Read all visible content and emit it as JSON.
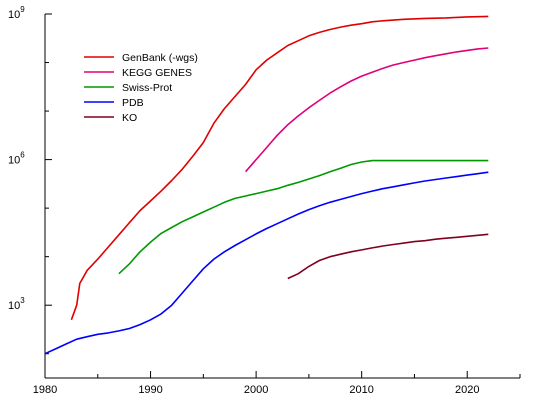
{
  "chart_data": {
    "type": "line",
    "title": "",
    "xlabel": "",
    "ylabel": "",
    "y_scale": "log",
    "xlim": [
      1980,
      2025
    ],
    "ylim_log10": [
      1.5,
      9
    ],
    "x_ticks": [
      1980,
      1990,
      2000,
      2010,
      2020
    ],
    "y_tick_labels": [
      {
        "label": "10",
        "exp": "3",
        "log10": 3
      },
      {
        "label": "10",
        "exp": "6",
        "log10": 6
      },
      {
        "label": "10",
        "exp": "9",
        "log10": 9
      }
    ],
    "grid": false,
    "legend_position": "top-left",
    "series": [
      {
        "name": "GenBank (-wgs)",
        "color": "#e00000",
        "points": [
          [
            1982.5,
            2.7
          ],
          [
            1983.0,
            3.0
          ],
          [
            1983.3,
            3.45
          ],
          [
            1984.0,
            3.72
          ],
          [
            1985.0,
            3.95
          ],
          [
            1986.0,
            4.2
          ],
          [
            1987.0,
            4.45
          ],
          [
            1988.0,
            4.7
          ],
          [
            1989.0,
            4.95
          ],
          [
            1990.0,
            5.15
          ],
          [
            1991.0,
            5.35
          ],
          [
            1992.0,
            5.57
          ],
          [
            1993.0,
            5.8
          ],
          [
            1994.0,
            6.07
          ],
          [
            1995.0,
            6.35
          ],
          [
            1996.0,
            6.75
          ],
          [
            1997.0,
            7.05
          ],
          [
            1998.0,
            7.3
          ],
          [
            1999.0,
            7.55
          ],
          [
            2000.0,
            7.85
          ],
          [
            2001.0,
            8.05
          ],
          [
            2002.0,
            8.2
          ],
          [
            2003.0,
            8.35
          ],
          [
            2004.0,
            8.45
          ],
          [
            2005.0,
            8.55
          ],
          [
            2006.0,
            8.62
          ],
          [
            2007.0,
            8.68
          ],
          [
            2008.0,
            8.73
          ],
          [
            2009.0,
            8.77
          ],
          [
            2010.0,
            8.8
          ],
          [
            2011.0,
            8.84
          ],
          [
            2012.0,
            8.86
          ],
          [
            2014.0,
            8.89
          ],
          [
            2016.0,
            8.91
          ],
          [
            2018.0,
            8.92
          ],
          [
            2020.0,
            8.94
          ],
          [
            2022.0,
            8.95
          ]
        ]
      },
      {
        "name": "KEGG GENES",
        "color": "#e0007a",
        "points": [
          [
            1999.0,
            5.75
          ],
          [
            2000.0,
            6.0
          ],
          [
            2001.0,
            6.25
          ],
          [
            2002.0,
            6.5
          ],
          [
            2003.0,
            6.72
          ],
          [
            2004.0,
            6.9
          ],
          [
            2005.0,
            7.07
          ],
          [
            2006.0,
            7.22
          ],
          [
            2007.0,
            7.37
          ],
          [
            2008.0,
            7.5
          ],
          [
            2009.0,
            7.62
          ],
          [
            2010.0,
            7.72
          ],
          [
            2011.0,
            7.8
          ],
          [
            2012.0,
            7.88
          ],
          [
            2013.0,
            7.95
          ],
          [
            2014.0,
            8.0
          ],
          [
            2015.0,
            8.05
          ],
          [
            2016.0,
            8.1
          ],
          [
            2017.0,
            8.14
          ],
          [
            2018.0,
            8.18
          ],
          [
            2019.0,
            8.22
          ],
          [
            2020.0,
            8.25
          ],
          [
            2021.0,
            8.28
          ],
          [
            2022.0,
            8.3
          ]
        ]
      },
      {
        "name": "Swiss-Prot",
        "color": "#009900",
        "points": [
          [
            1987.0,
            3.65
          ],
          [
            1988.0,
            3.85
          ],
          [
            1989.0,
            4.1
          ],
          [
            1990.0,
            4.3
          ],
          [
            1991.0,
            4.48
          ],
          [
            1992.0,
            4.6
          ],
          [
            1993.0,
            4.72
          ],
          [
            1994.0,
            4.82
          ],
          [
            1995.0,
            4.92
          ],
          [
            1996.0,
            5.02
          ],
          [
            1997.0,
            5.12
          ],
          [
            1998.0,
            5.2
          ],
          [
            1999.0,
            5.25
          ],
          [
            2000.0,
            5.3
          ],
          [
            2001.0,
            5.35
          ],
          [
            2002.0,
            5.4
          ],
          [
            2003.0,
            5.47
          ],
          [
            2004.0,
            5.53
          ],
          [
            2005.0,
            5.6
          ],
          [
            2006.0,
            5.67
          ],
          [
            2007.0,
            5.75
          ],
          [
            2008.0,
            5.82
          ],
          [
            2009.0,
            5.9
          ],
          [
            2010.0,
            5.95
          ],
          [
            2011.0,
            5.98
          ],
          [
            2012.0,
            5.98
          ],
          [
            2014.0,
            5.98
          ],
          [
            2016.0,
            5.98
          ],
          [
            2018.0,
            5.98
          ],
          [
            2020.0,
            5.98
          ],
          [
            2022.0,
            5.98
          ]
        ]
      },
      {
        "name": "PDB",
        "color": "#0000ff",
        "points": [
          [
            1980.0,
            2.0
          ],
          [
            1981.0,
            2.1
          ],
          [
            1982.0,
            2.2
          ],
          [
            1983.0,
            2.3
          ],
          [
            1984.0,
            2.35
          ],
          [
            1985.0,
            2.4
          ],
          [
            1986.0,
            2.43
          ],
          [
            1987.0,
            2.47
          ],
          [
            1988.0,
            2.52
          ],
          [
            1989.0,
            2.6
          ],
          [
            1990.0,
            2.7
          ],
          [
            1991.0,
            2.82
          ],
          [
            1992.0,
            3.0
          ],
          [
            1993.0,
            3.25
          ],
          [
            1994.0,
            3.5
          ],
          [
            1995.0,
            3.75
          ],
          [
            1996.0,
            3.95
          ],
          [
            1997.0,
            4.1
          ],
          [
            1998.0,
            4.23
          ],
          [
            1999.0,
            4.35
          ],
          [
            2000.0,
            4.47
          ],
          [
            2001.0,
            4.58
          ],
          [
            2002.0,
            4.68
          ],
          [
            2003.0,
            4.78
          ],
          [
            2004.0,
            4.88
          ],
          [
            2005.0,
            4.97
          ],
          [
            2006.0,
            5.05
          ],
          [
            2007.0,
            5.12
          ],
          [
            2008.0,
            5.18
          ],
          [
            2009.0,
            5.24
          ],
          [
            2010.0,
            5.3
          ],
          [
            2011.0,
            5.35
          ],
          [
            2012.0,
            5.4
          ],
          [
            2013.0,
            5.44
          ],
          [
            2014.0,
            5.48
          ],
          [
            2015.0,
            5.52
          ],
          [
            2016.0,
            5.56
          ],
          [
            2017.0,
            5.59
          ],
          [
            2018.0,
            5.62
          ],
          [
            2019.0,
            5.65
          ],
          [
            2020.0,
            5.68
          ],
          [
            2021.0,
            5.71
          ],
          [
            2022.0,
            5.74
          ]
        ]
      },
      {
        "name": "KO",
        "color": "#800020",
        "points": [
          [
            2003.0,
            3.55
          ],
          [
            2004.0,
            3.65
          ],
          [
            2005.0,
            3.8
          ],
          [
            2006.0,
            3.92
          ],
          [
            2007.0,
            4.0
          ],
          [
            2008.0,
            4.05
          ],
          [
            2009.0,
            4.1
          ],
          [
            2010.0,
            4.14
          ],
          [
            2011.0,
            4.18
          ],
          [
            2012.0,
            4.22
          ],
          [
            2013.0,
            4.25
          ],
          [
            2014.0,
            4.28
          ],
          [
            2015.0,
            4.31
          ],
          [
            2016.0,
            4.33
          ],
          [
            2017.0,
            4.36
          ],
          [
            2018.0,
            4.38
          ],
          [
            2019.0,
            4.4
          ],
          [
            2020.0,
            4.42
          ],
          [
            2021.0,
            4.44
          ],
          [
            2022.0,
            4.46
          ]
        ]
      }
    ]
  }
}
